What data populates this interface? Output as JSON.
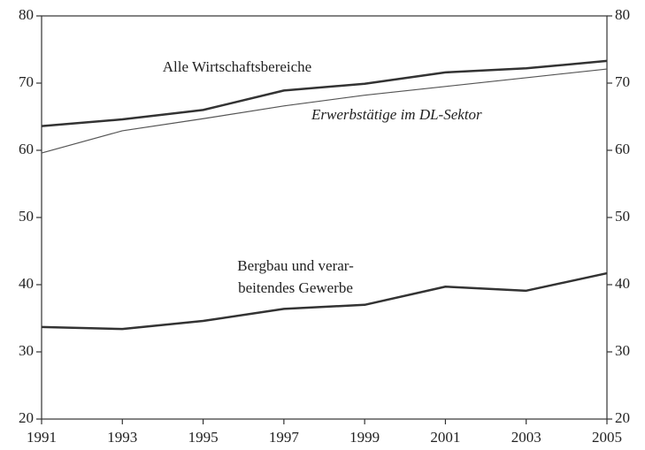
{
  "chart_data": {
    "type": "line",
    "x": [
      1991,
      1993,
      1995,
      1997,
      1999,
      2001,
      2003,
      2005
    ],
    "series": [
      {
        "name": "Alle Wirtschaftsbereiche",
        "color": "#333333",
        "width": 2.5,
        "italic": false,
        "values": [
          63.6,
          64.6,
          66.0,
          68.9,
          69.9,
          71.6,
          72.2,
          73.3
        ]
      },
      {
        "name": "Erwerbstätige im DL-Sektor",
        "color": "#555555",
        "width": 1.2,
        "italic": true,
        "values": [
          59.6,
          62.9,
          64.7,
          66.6,
          68.2,
          69.5,
          70.8,
          72.1
        ]
      },
      {
        "name": [
          "Bergbau und verar-",
          "beitendes Gewerbe"
        ],
        "color": "#333333",
        "width": 2.5,
        "italic": false,
        "values": [
          33.7,
          33.4,
          34.6,
          36.4,
          37.0,
          39.7,
          39.1,
          41.7
        ]
      }
    ],
    "xlim": [
      1991,
      2005
    ],
    "xticks": [
      1991,
      1993,
      1995,
      1997,
      1999,
      2001,
      2003,
      2005
    ],
    "ylim": [
      20,
      80
    ],
    "yticks": [
      20,
      30,
      40,
      50,
      60,
      70,
      80
    ],
    "y2lim": [
      20,
      80
    ],
    "y2ticks": [
      20,
      30,
      40,
      50,
      60,
      70,
      80
    ],
    "grid": false
  }
}
